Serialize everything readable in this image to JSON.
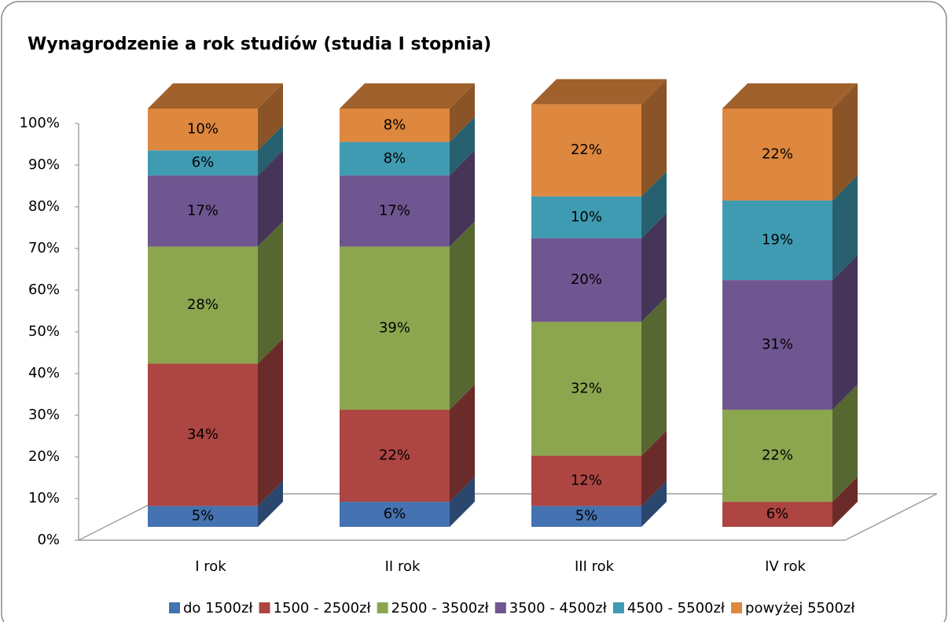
{
  "chart_data": {
    "type": "bar3d_stacked",
    "title": "Wynagrodzenie a rok studiów (studia I stopnia)",
    "categories": [
      "I rok",
      "II rok",
      "III rok",
      "IV rok"
    ],
    "series": [
      {
        "name": "do 1500zł",
        "color": "#4572b0",
        "values": [
          5,
          6,
          5,
          null
        ],
        "value_labels": [
          "5%",
          "6%",
          "5%",
          null
        ]
      },
      {
        "name": "1500 - 2500zł",
        "color": "#ad4542",
        "values": [
          34,
          22,
          12,
          6
        ],
        "value_labels": [
          "34%",
          "22%",
          "12%",
          "6%"
        ]
      },
      {
        "name": "2500 - 3500zł",
        "color": "#8ca650",
        "values": [
          28,
          39,
          32,
          22
        ],
        "value_labels": [
          "28%",
          "39%",
          "32%",
          "22%"
        ]
      },
      {
        "name": "3500 - 4500zł",
        "color": "#705690",
        "values": [
          17,
          17,
          20,
          31
        ],
        "value_labels": [
          "17%",
          "17%",
          "20%",
          "31%"
        ]
      },
      {
        "name": "4500 - 5500zł",
        "color": "#3f9bb2",
        "values": [
          6,
          8,
          10,
          19
        ],
        "value_labels": [
          "6%",
          "8%",
          "10%",
          "19%"
        ]
      },
      {
        "name": "powyżej 5500zł",
        "color": "#de873e",
        "values": [
          10,
          8,
          22,
          22
        ],
        "value_labels": [
          "10%",
          "8%",
          "22%",
          "22%"
        ]
      }
    ],
    "ylim": [
      0,
      100
    ],
    "yticks": [
      {
        "value": 0,
        "label": "0%"
      },
      {
        "value": 10,
        "label": "10%"
      },
      {
        "value": 20,
        "label": "20%"
      },
      {
        "value": 30,
        "label": "30%"
      },
      {
        "value": 40,
        "label": "40%"
      },
      {
        "value": 50,
        "label": "50%"
      },
      {
        "value": 60,
        "label": "60%"
      },
      {
        "value": 70,
        "label": "70%"
      },
      {
        "value": 80,
        "label": "80%"
      },
      {
        "value": 90,
        "label": "90%"
      },
      {
        "value": 100,
        "label": "100%"
      }
    ],
    "legend": "bottom"
  }
}
